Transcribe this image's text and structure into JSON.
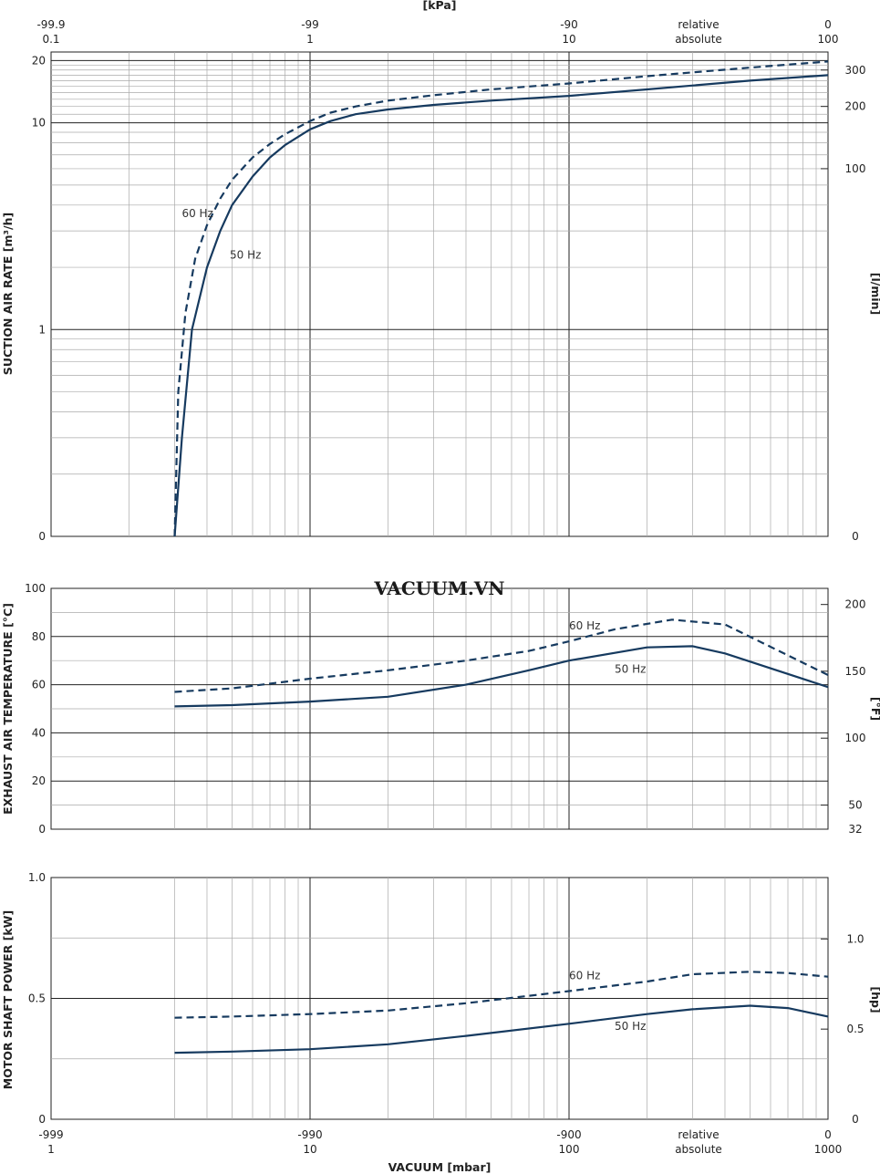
{
  "watermark": "VACUUM.VN",
  "chart_data": [
    {
      "type": "line",
      "ylabel": "SUCTION AIR RATE  [m³/h]",
      "ylabel_right": "[l/min]",
      "x_scale": "log",
      "xlim": [
        1,
        1000
      ],
      "y_scale": "log",
      "ylim": [
        0.1,
        22
      ],
      "yticks": [
        {
          "v": 20,
          "label": "20"
        },
        {
          "v": 10,
          "label": "10"
        },
        {
          "v": 1,
          "label": "1"
        },
        {
          "v": 0.1,
          "label": "0"
        }
      ],
      "yticks_right": [
        {
          "v": 18,
          "label": "300"
        },
        {
          "v": 12,
          "label": "200"
        },
        {
          "v": 6,
          "label": "100"
        },
        {
          "v": 0.1,
          "label": "0"
        }
      ],
      "series": [
        {
          "name": "50 Hz",
          "style": "solid",
          "x": [
            3.0,
            3.2,
            3.5,
            4,
            4.5,
            5,
            6,
            7,
            8,
            10,
            12,
            15,
            20,
            30,
            50,
            100,
            200,
            500,
            1000
          ],
          "y": [
            0.1,
            0.3,
            1.0,
            2.0,
            3.0,
            4.0,
            5.5,
            6.8,
            7.8,
            9.3,
            10.2,
            11.0,
            11.6,
            12.2,
            12.8,
            13.5,
            14.5,
            16.0,
            17.0
          ]
        },
        {
          "name": "60 Hz",
          "style": "dashed",
          "x": [
            3.0,
            3.1,
            3.3,
            3.6,
            4,
            4.5,
            5,
            6,
            7,
            8,
            10,
            12,
            15,
            20,
            30,
            50,
            100,
            200,
            500,
            1000
          ],
          "y": [
            0.1,
            0.5,
            1.2,
            2.2,
            3.2,
            4.3,
            5.3,
            6.8,
            7.9,
            8.8,
            10.2,
            11.2,
            12.0,
            12.8,
            13.6,
            14.5,
            15.5,
            16.8,
            18.5,
            19.8
          ]
        }
      ],
      "labels": [
        {
          "text": "60 Hz",
          "x": 3.2,
          "y": 3.5
        },
        {
          "text": "50 Hz",
          "x": 4.9,
          "y": 2.2
        }
      ]
    },
    {
      "type": "line",
      "ylabel": "EXHAUST AIR TEMPERATURE  [°C]",
      "ylabel_right": "[°F]",
      "x_scale": "log",
      "xlim": [
        1,
        1000
      ],
      "ylim": [
        0,
        100
      ],
      "yticks": [
        {
          "v": 100,
          "label": "100"
        },
        {
          "v": 80,
          "label": "80"
        },
        {
          "v": 60,
          "label": "60"
        },
        {
          "v": 40,
          "label": "40"
        },
        {
          "v": 20,
          "label": "20"
        },
        {
          "v": 0,
          "label": "0"
        }
      ],
      "yticks_right": [
        {
          "v": 93.3,
          "label": "200"
        },
        {
          "v": 65.6,
          "label": "150"
        },
        {
          "v": 37.8,
          "label": "100"
        },
        {
          "v": 10,
          "label": "50"
        },
        {
          "v": 0,
          "label": "32"
        }
      ],
      "series": [
        {
          "name": "50 Hz",
          "style": "solid",
          "x": [
            3,
            5,
            10,
            20,
            40,
            70,
            100,
            200,
            300,
            400,
            1000
          ],
          "y": [
            51,
            51.5,
            53,
            55,
            60,
            66,
            70,
            75.5,
            76,
            73,
            59
          ]
        },
        {
          "name": "60 Hz",
          "style": "dashed",
          "x": [
            3,
            5,
            10,
            20,
            40,
            70,
            100,
            150,
            250,
            400,
            1000
          ],
          "y": [
            57,
            58.5,
            62.5,
            66,
            70,
            74,
            78,
            83,
            87,
            85,
            64
          ]
        }
      ],
      "labels": [
        {
          "text": "60 Hz",
          "x": 100,
          "y": 83
        },
        {
          "text": "50 Hz",
          "x": 150,
          "y": 65
        }
      ]
    },
    {
      "type": "line",
      "ylabel": "MOTOR SHAFT POWER  [kW]",
      "ylabel_right": "[hp]",
      "x_scale": "log",
      "xlim": [
        1,
        1000
      ],
      "ylim": [
        0,
        1.0
      ],
      "yticks": [
        {
          "v": 1.0,
          "label": "1.0"
        },
        {
          "v": 0.5,
          "label": "0.5"
        },
        {
          "v": 0,
          "label": "0"
        }
      ],
      "yticks_right": [
        {
          "v": 0.746,
          "label": "1.0"
        },
        {
          "v": 0.373,
          "label": "0.5"
        },
        {
          "v": 0,
          "label": "0"
        }
      ],
      "series": [
        {
          "name": "50 Hz",
          "style": "solid",
          "x": [
            3,
            5,
            10,
            20,
            40,
            100,
            200,
            300,
            500,
            700,
            1000
          ],
          "y": [
            0.275,
            0.28,
            0.29,
            0.31,
            0.345,
            0.395,
            0.435,
            0.455,
            0.47,
            0.46,
            0.425
          ]
        },
        {
          "name": "60 Hz",
          "style": "dashed",
          "x": [
            3,
            5,
            10,
            20,
            40,
            100,
            200,
            300,
            500,
            700,
            1000
          ],
          "y": [
            0.42,
            0.425,
            0.435,
            0.45,
            0.48,
            0.53,
            0.57,
            0.6,
            0.61,
            0.605,
            0.59
          ]
        }
      ],
      "labels": [
        {
          "text": "60 Hz",
          "x": 100,
          "y": 0.58
        },
        {
          "text": "50 Hz",
          "x": 150,
          "y": 0.37
        }
      ]
    }
  ],
  "top_axis": {
    "title": "[kPa]",
    "rel_labels": [
      "-99.9",
      "-99",
      "-90",
      "relative",
      "0"
    ],
    "abs_labels": [
      "0.1",
      "1",
      "10",
      "absolute",
      "100"
    ]
  },
  "bottom_axis": {
    "title": "VACUUM  [mbar]",
    "rel_labels": [
      "-999",
      "-990",
      "-900",
      "relative",
      "0"
    ],
    "abs_labels": [
      "1",
      "10",
      "100",
      "absolute",
      "1000"
    ]
  }
}
